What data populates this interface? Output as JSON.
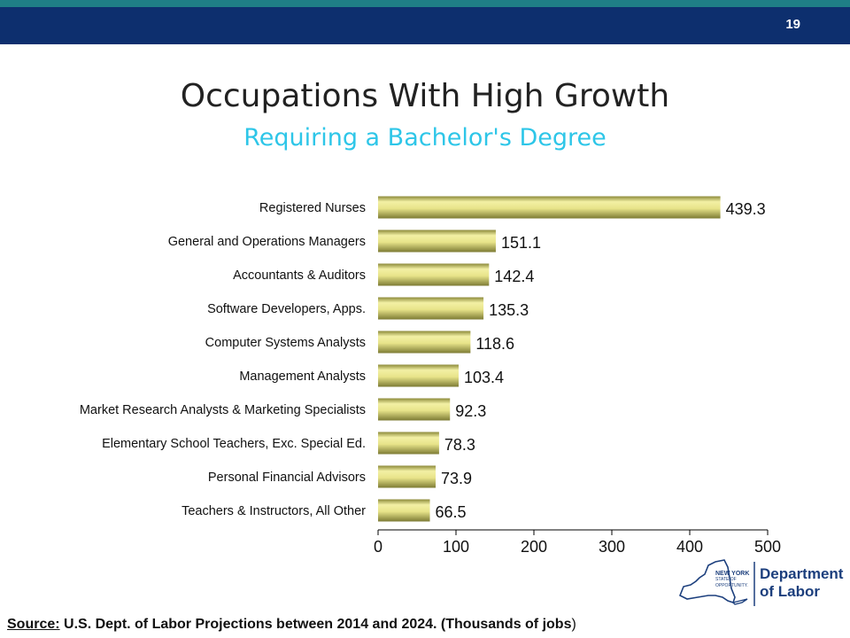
{
  "header": {
    "slide_number": "19"
  },
  "title": "Occupations With High Growth",
  "subtitle": "Requiring a Bachelor's Degree",
  "source": {
    "label": "Source:",
    "text": " U.S. Dept. of Labor Projections between 2014 and 2024.  (Thousands of jobs",
    "close": ")"
  },
  "logo": {
    "line1": "NEW YORK",
    "line2": "STATE OF",
    "line3": "OPPORTUNITY.",
    "dept1": "Department",
    "dept2": "of Labor"
  },
  "colors": {
    "bar": "#e8e48a",
    "header": "#0d2f6e",
    "teal": "#1f7f86",
    "subtitle": "#2ec6e8",
    "logo": "#1c3f7d"
  },
  "chart_data": {
    "type": "bar",
    "orientation": "horizontal",
    "categories": [
      "Registered Nurses",
      "General and Operations Managers",
      "Accountants & Auditors",
      "Software Developers, Apps.",
      "Computer Systems Analysts",
      "Management Analysts",
      "Market Research Analysts & Marketing Specialists",
      "Elementary School Teachers, Exc. Special Ed.",
      "Personal Financial Advisors",
      "Teachers & Instructors, All Other"
    ],
    "values": [
      439.3,
      151.1,
      142.4,
      135.3,
      118.6,
      103.4,
      92.3,
      78.3,
      73.9,
      66.5
    ],
    "data_labels": [
      "439.3",
      "151.1",
      "142.4",
      "135.3",
      "118.6",
      "103.4",
      "92.3",
      "78.3",
      "73.9",
      "66.5"
    ],
    "xlim": [
      0,
      500
    ],
    "xticks": [
      "0",
      "100",
      "200",
      "300",
      "400",
      "500"
    ],
    "grid": false,
    "legend": "none"
  }
}
